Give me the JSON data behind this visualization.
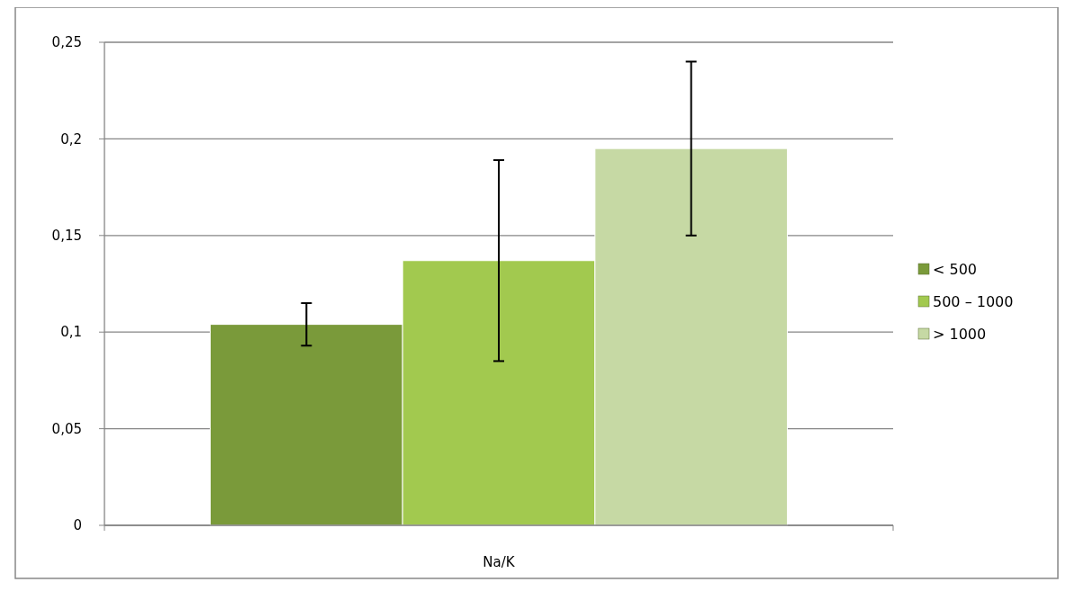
{
  "chart_data": {
    "type": "bar",
    "categories": [
      "Na/K"
    ],
    "series": [
      {
        "name": "< 500",
        "color": "#7a9a3a",
        "values": [
          0.104
        ],
        "errors": [
          0.011
        ]
      },
      {
        "name": "500 – 1000",
        "color": "#a2c94f",
        "values": [
          0.137
        ],
        "errors": [
          0.052
        ]
      },
      {
        "name": "> 1000",
        "color": "#c6d9a4",
        "values": [
          0.195
        ],
        "errors": [
          0.045
        ]
      }
    ],
    "ylim": [
      0,
      0.25
    ],
    "yticks": [
      {
        "value": 0,
        "label": "0"
      },
      {
        "value": 0.05,
        "label": "0,05"
      },
      {
        "value": 0.1,
        "label": "0,1"
      },
      {
        "value": 0.15,
        "label": "0,15"
      },
      {
        "value": 0.2,
        "label": "0,2"
      },
      {
        "value": 0.25,
        "label": "0,25"
      }
    ],
    "grid": "y",
    "legend": "right"
  }
}
